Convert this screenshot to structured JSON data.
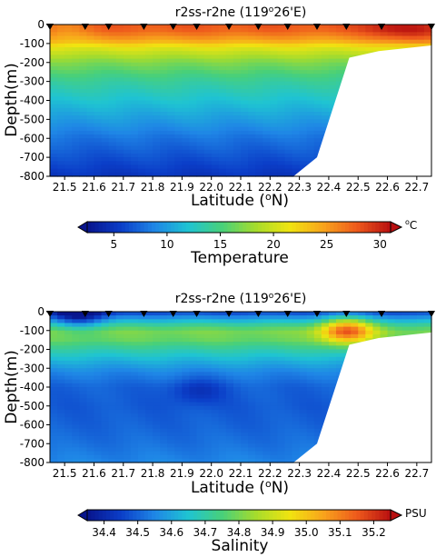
{
  "colorscale": [
    "#08148c",
    "#0b3ec8",
    "#1f86e6",
    "#1fc4d2",
    "#48d07a",
    "#a6dc2c",
    "#f0e410",
    "#f8a41c",
    "#ee5a1c",
    "#b80f10"
  ],
  "station_marker": "inverted-triangle",
  "chart_data": [
    {
      "type": "heatmap",
      "title": "r2ss-r2ne (119º26'E)",
      "title_parts": {
        "pre": "r2ss-r2ne (119",
        "sup": "o",
        "post": "26'E)"
      },
      "xlabel": "Latitude (ºN)",
      "xlabel_parts": {
        "pre": "Latitude (",
        "sup": "o",
        "post": "N)"
      },
      "ylabel": "Depth(m)",
      "xlim": [
        21.45,
        22.75
      ],
      "ylim": [
        -800,
        0
      ],
      "xticks": [
        21.5,
        21.6,
        21.7,
        21.8,
        21.9,
        22.0,
        22.1,
        22.2,
        22.3,
        22.4,
        22.5,
        22.6,
        22.7
      ],
      "xtick_labels": [
        "21.5",
        "21.6",
        "21.7",
        "21.8",
        "21.9",
        "22.0",
        "22.1",
        "22.2",
        "22.3",
        "22.4",
        "22.5",
        "22.6",
        "22.7"
      ],
      "yticks": [
        0,
        -100,
        -200,
        -300,
        -400,
        -500,
        -600,
        -700,
        -800
      ],
      "ytick_labels": [
        "0",
        "-100",
        "-200",
        "-300",
        "-400",
        "-500",
        "-600",
        "-700",
        "-800"
      ],
      "stations": [
        21.45,
        21.57,
        21.65,
        21.77,
        21.87,
        21.95,
        22.06,
        22.16,
        22.26,
        22.36,
        22.46,
        22.58,
        22.75
      ],
      "bottom_mask": [
        [
          22.28,
          -800
        ],
        [
          22.36,
          -700
        ],
        [
          22.47,
          -175
        ],
        [
          22.57,
          -140
        ],
        [
          22.75,
          -110
        ]
      ],
      "colorbar": {
        "label": "Temperature",
        "unit": "ºC",
        "unit_parts": {
          "pre": "",
          "sup": "o",
          "post": "C"
        },
        "vmin": 2.5,
        "vmax": 31,
        "ticks": [
          5,
          10,
          15,
          20,
          25,
          30
        ],
        "tick_labels": [
          "5",
          "10",
          "15",
          "20",
          "25",
          "30"
        ]
      },
      "profile": [
        [
          0,
          28
        ],
        [
          -30,
          27.5
        ],
        [
          -60,
          26
        ],
        [
          -90,
          24
        ],
        [
          -120,
          21
        ],
        [
          -160,
          19
        ],
        [
          -200,
          17
        ],
        [
          -250,
          15.5
        ],
        [
          -300,
          14
        ],
        [
          -400,
          12
        ],
        [
          -500,
          10
        ],
        [
          -600,
          8
        ],
        [
          -700,
          6.5
        ],
        [
          -800,
          5
        ]
      ],
      "anomalies": [
        {
          "lat": 21.5,
          "depth": -20,
          "value": 26
        },
        {
          "lat": 22.6,
          "depth": -20,
          "value": 30
        },
        {
          "lat": 22.7,
          "depth": -50,
          "value": 29
        }
      ]
    },
    {
      "type": "heatmap",
      "title": "r2ss-r2ne (119º26'E)",
      "title_parts": {
        "pre": "r2ss-r2ne (119",
        "sup": "o",
        "post": "26'E)"
      },
      "xlabel": "Latitude (ºN)",
      "xlabel_parts": {
        "pre": "Latitude (",
        "sup": "o",
        "post": "N)"
      },
      "ylabel": "Depth(m)",
      "xlim": [
        21.45,
        22.75
      ],
      "ylim": [
        -800,
        0
      ],
      "xticks": [
        21.5,
        21.6,
        21.7,
        21.8,
        21.9,
        22.0,
        22.1,
        22.2,
        22.3,
        22.4,
        22.5,
        22.6,
        22.7
      ],
      "xtick_labels": [
        "21.5",
        "21.6",
        "21.7",
        "21.8",
        "21.9",
        "22.0",
        "22.1",
        "22.2",
        "22.3",
        "22.4",
        "22.5",
        "22.6",
        "22.7"
      ],
      "yticks": [
        0,
        -100,
        -200,
        -300,
        -400,
        -500,
        -600,
        -700,
        -800
      ],
      "ytick_labels": [
        "0",
        "-100",
        "-200",
        "-300",
        "-400",
        "-500",
        "-600",
        "-700",
        "-800"
      ],
      "stations": [
        21.45,
        21.57,
        21.65,
        21.77,
        21.87,
        21.95,
        22.06,
        22.16,
        22.26,
        22.36,
        22.46,
        22.58,
        22.75
      ],
      "bottom_mask": [
        [
          22.28,
          -800
        ],
        [
          22.36,
          -700
        ],
        [
          22.47,
          -175
        ],
        [
          22.57,
          -140
        ],
        [
          22.75,
          -110
        ]
      ],
      "colorbar": {
        "label": "Salinity",
        "unit": "PSU",
        "unit_parts": {
          "pre": "PSU",
          "sup": "",
          "post": ""
        },
        "vmin": 34.35,
        "vmax": 35.25,
        "ticks": [
          34.4,
          34.5,
          34.6,
          34.7,
          34.8,
          34.9,
          35.0,
          35.1,
          35.2
        ],
        "tick_labels": [
          "34.4",
          "34.5",
          "34.6",
          "34.7",
          "34.8",
          "34.9",
          "35.0",
          "35.1",
          "35.2"
        ]
      },
      "profile": [
        [
          0,
          34.45
        ],
        [
          -40,
          34.6
        ],
        [
          -80,
          34.75
        ],
        [
          -110,
          34.8
        ],
        [
          -150,
          34.78
        ],
        [
          -200,
          34.7
        ],
        [
          -260,
          34.62
        ],
        [
          -320,
          34.55
        ],
        [
          -400,
          34.5
        ],
        [
          -500,
          34.49
        ],
        [
          -600,
          34.5
        ],
        [
          -700,
          34.52
        ],
        [
          -800,
          34.55
        ]
      ],
      "anomalies": [
        {
          "lat": 22.46,
          "depth": -100,
          "value": 35.15
        },
        {
          "lat": 21.55,
          "depth": -15,
          "value": 34.3
        },
        {
          "lat": 21.95,
          "depth": -420,
          "value": 34.42
        }
      ]
    }
  ]
}
